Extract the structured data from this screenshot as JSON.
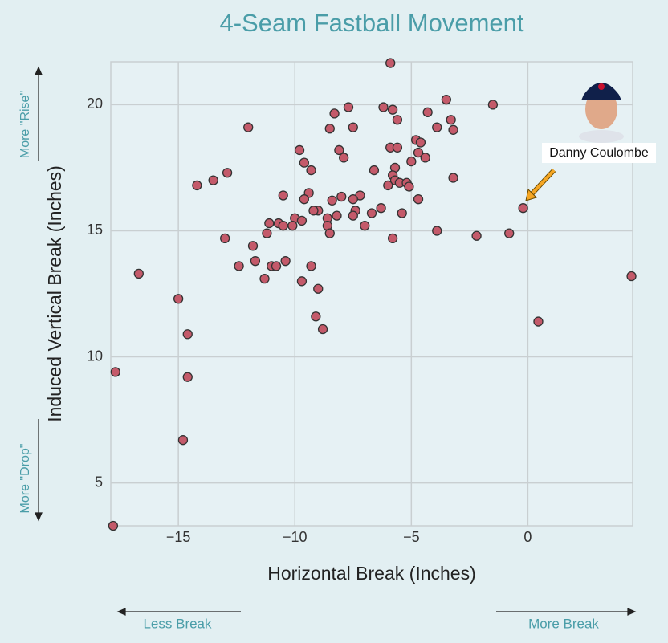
{
  "chart_data": {
    "type": "scatter",
    "title": "4-Seam Fastball Movement",
    "x_label": "Horizontal Break (Inches)",
    "y_label": "Induced Vertical Break (Inches)",
    "annotation": "Danny Coulombe",
    "direction_labels": {
      "up": "More \"Rise\"",
      "down": "More \"Drop\"",
      "left": "Less Break",
      "right": "More Break"
    },
    "color": "#c45a6a",
    "grid": true,
    "xlim": [
      -17.9,
      4.5
    ],
    "ylim": [
      3.3,
      21.7
    ],
    "xticks": [
      {
        "value": -15,
        "label": "−15"
      },
      {
        "value": -10,
        "label": "−10"
      },
      {
        "value": -5,
        "label": "−5"
      },
      0
    ],
    "yticks": [
      5,
      10,
      15,
      20
    ],
    "x": [
      -5.9,
      -3.5,
      -1.5,
      -7.7,
      -6.2,
      -5.8,
      -4.3,
      -8.3,
      -3.3,
      -5.6,
      -12.0,
      -8.5,
      -7.5,
      -3.9,
      -3.2,
      -4.8,
      -4.6,
      -5.9,
      -5.6,
      -9.8,
      -8.1,
      -4.7,
      -7.9,
      -4.4,
      -9.6,
      -5.0,
      -5.7,
      -9.3,
      -6.6,
      -12.9,
      -5.8,
      -3.2,
      -13.5,
      -5.7,
      -5.5,
      -5.2,
      -5.1,
      -6.0,
      -14.2,
      -9.4,
      -10.5,
      -7.2,
      -9.6,
      -8.4,
      -8.0,
      -7.5,
      -4.7,
      -0.2,
      -6.3,
      -9.0,
      -7.4,
      -9.2,
      -6.7,
      -5.4,
      -8.2,
      -7.5,
      -10.0,
      -8.6,
      -11.1,
      -10.7,
      -9.7,
      -10.1,
      -10.5,
      -7.0,
      -8.6,
      -3.9,
      -11.2,
      -8.5,
      -0.8,
      -2.2,
      -13.0,
      -5.8,
      -11.8,
      -10.4,
      -11.7,
      -12.4,
      -11.0,
      -10.8,
      -9.3,
      -16.7,
      4.45,
      -11.3,
      -9.7,
      -9.0,
      -15.0,
      -9.1,
      0.45,
      -8.8,
      -14.6,
      -17.7,
      -14.6,
      -14.8,
      -17.8
    ],
    "values": [
      21.65,
      20.2,
      20.0,
      19.9,
      19.9,
      19.8,
      19.7,
      19.65,
      19.4,
      19.4,
      19.1,
      19.05,
      19.1,
      19.1,
      19.0,
      18.6,
      18.5,
      18.3,
      18.3,
      18.2,
      18.2,
      18.1,
      17.9,
      17.9,
      17.7,
      17.75,
      17.5,
      17.4,
      17.4,
      17.3,
      17.2,
      17.1,
      17.0,
      17.0,
      16.9,
      16.9,
      16.75,
      16.8,
      16.8,
      16.5,
      16.4,
      16.4,
      16.25,
      16.2,
      16.35,
      16.25,
      16.25,
      15.9,
      15.9,
      15.8,
      15.8,
      15.8,
      15.7,
      15.7,
      15.6,
      15.6,
      15.5,
      15.5,
      15.3,
      15.3,
      15.4,
      15.2,
      15.2,
      15.2,
      15.2,
      15.0,
      14.9,
      14.9,
      14.9,
      14.8,
      14.7,
      14.7,
      14.4,
      13.8,
      13.8,
      13.6,
      13.6,
      13.6,
      13.6,
      13.3,
      13.2,
      13.1,
      13.0,
      12.7,
      12.3,
      11.6,
      11.4,
      11.1,
      10.9,
      9.4,
      9.2,
      6.7,
      3.3
    ]
  }
}
